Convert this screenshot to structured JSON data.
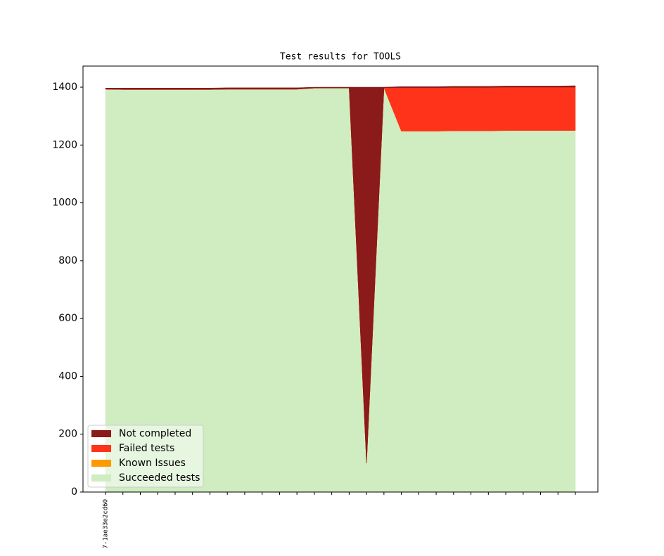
{
  "chart_data": {
    "type": "stacked_area",
    "title": "Test results for TOOLS",
    "categories": [
      "7-1ae33e2cd60",
      null,
      null,
      null,
      null,
      null,
      null,
      null,
      null,
      null,
      null,
      null,
      null,
      null,
      null,
      null,
      null,
      null,
      null,
      null,
      null,
      null,
      null,
      null,
      null,
      null,
      null,
      null
    ],
    "series": [
      {
        "name": "Not completed",
        "color": "#8b1a1a",
        "values": [
          4,
          5,
          5,
          5,
          5,
          5,
          5,
          5,
          5,
          5,
          5,
          5,
          3,
          3,
          3,
          1300,
          2,
          4,
          4,
          4,
          4,
          4,
          4,
          4,
          4,
          4,
          4,
          5
        ]
      },
      {
        "name": "Failed tests",
        "color": "#ff3319",
        "values": [
          0,
          0,
          0,
          0,
          0,
          0,
          0,
          0,
          0,
          0,
          0,
          0,
          0,
          0,
          0,
          0,
          0,
          150,
          150,
          150,
          150,
          150,
          150,
          150,
          150,
          150,
          150,
          150
        ]
      },
      {
        "name": "Known Issues",
        "color": "#ff9900",
        "values": [
          0,
          0,
          0,
          0,
          0,
          0,
          0,
          0,
          0,
          0,
          0,
          0,
          0,
          0,
          0,
          0,
          0,
          0,
          0,
          0,
          0,
          0,
          0,
          0,
          0,
          0,
          0,
          0
        ]
      },
      {
        "name": "Succeeded tests",
        "color": "#cfedc0",
        "values": [
          1393,
          1392,
          1392,
          1392,
          1392,
          1392,
          1392,
          1393,
          1393,
          1393,
          1393,
          1393,
          1397,
          1397,
          1397,
          100,
          1398,
          1248,
          1248,
          1248,
          1249,
          1249,
          1249,
          1250,
          1250,
          1250,
          1250,
          1250
        ]
      }
    ],
    "ylim": [
      0,
      1473
    ],
    "yticks": [
      0,
      200,
      400,
      600,
      800,
      1000,
      1200,
      1400
    ],
    "legend": "lower left"
  }
}
